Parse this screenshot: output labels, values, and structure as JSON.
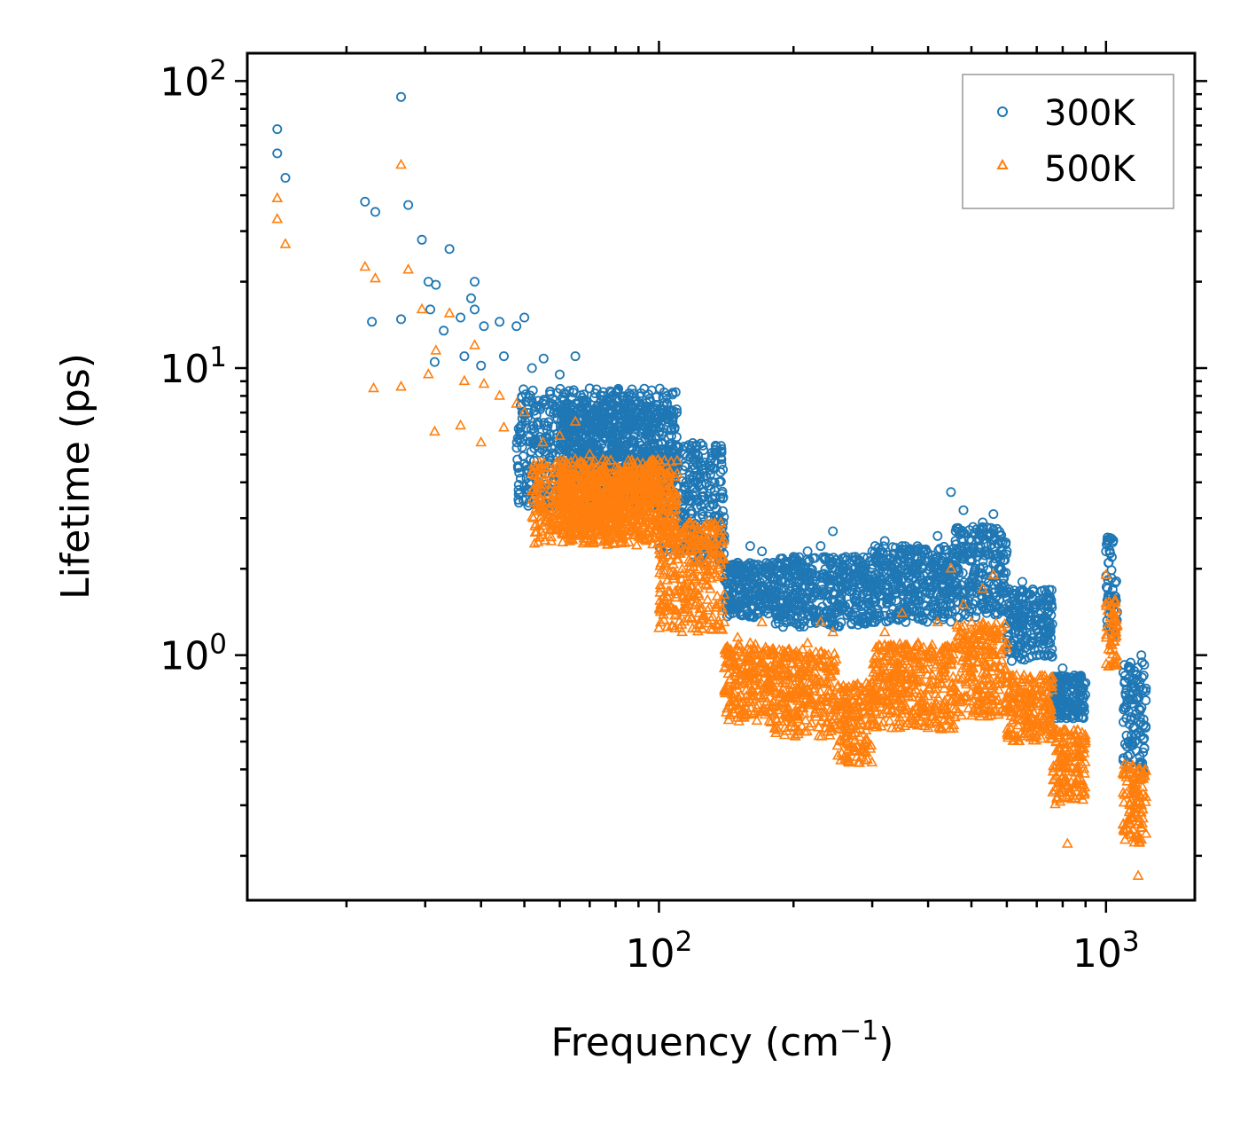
{
  "chart_data": {
    "type": "scatter",
    "title": "",
    "xlabel": "Frequency (cm",
    "xlabel_sup": "−1",
    "xlabel_close": ")",
    "ylabel": "Lifetime (ps)",
    "xscale": "log",
    "yscale": "log",
    "xlim": [
      12,
      1580
    ],
    "ylim": [
      0.14,
      125
    ],
    "x_ticks": [
      {
        "value": 100,
        "base": "10",
        "exp": "2"
      },
      {
        "value": 1000,
        "base": "10",
        "exp": "3"
      }
    ],
    "y_ticks": [
      {
        "value": 1,
        "base": "10",
        "exp": "0"
      },
      {
        "value": 10,
        "base": "10",
        "exp": "1"
      },
      {
        "value": 100,
        "base": "10",
        "exp": "2"
      }
    ],
    "legend_position": "top-right",
    "series": [
      {
        "name": "300K",
        "marker": "circle",
        "color": "#1f77b4",
        "points": [
          [
            14,
            68
          ],
          [
            14,
            56
          ],
          [
            14.6,
            46
          ],
          [
            22,
            38
          ],
          [
            23.2,
            35
          ],
          [
            26.5,
            88
          ],
          [
            27.5,
            37
          ],
          [
            29.5,
            28
          ],
          [
            30.5,
            20
          ],
          [
            31.7,
            19.5
          ],
          [
            34,
            26
          ],
          [
            38.7,
            20
          ],
          [
            30.8,
            16
          ],
          [
            26.5,
            14.8
          ],
          [
            22.8,
            14.5
          ],
          [
            33,
            13.5
          ],
          [
            36,
            15
          ],
          [
            38,
            17.5
          ],
          [
            38.7,
            16
          ],
          [
            40.6,
            14
          ],
          [
            44,
            14.5
          ],
          [
            48,
            14
          ],
          [
            50,
            15
          ],
          [
            36.7,
            11
          ],
          [
            31.5,
            10.5
          ],
          [
            40,
            10.2
          ],
          [
            45,
            11
          ],
          [
            52,
            10
          ],
          [
            55.2,
            10.8
          ],
          [
            60,
            9.5
          ],
          [
            65,
            11
          ],
          [
            70,
            8.5
          ],
          [
            75,
            8
          ],
          [
            80,
            8.2
          ],
          [
            85,
            7.8
          ],
          [
            90,
            7.2
          ],
          [
            95,
            6.8
          ],
          [
            100,
            6
          ],
          [
            105,
            5.2
          ],
          [
            110,
            4.5
          ],
          [
            115,
            4
          ],
          [
            120,
            4.8
          ],
          [
            125,
            3.7
          ],
          [
            130,
            3.3
          ],
          [
            135,
            3
          ],
          [
            140,
            2.6
          ],
          [
            150,
            2.1
          ],
          [
            160,
            2.4
          ],
          [
            170,
            2.3
          ],
          [
            180,
            2.1
          ],
          [
            190,
            2
          ],
          [
            200,
            2.2
          ],
          [
            215,
            2.3
          ],
          [
            230,
            2.4
          ],
          [
            245,
            2.7
          ],
          [
            260,
            2
          ],
          [
            275,
            2.2
          ],
          [
            300,
            2.3
          ],
          [
            320,
            2.5
          ],
          [
            350,
            2.4
          ],
          [
            380,
            2.3
          ],
          [
            420,
            2.6
          ],
          [
            450,
            3.7
          ],
          [
            480,
            3.2
          ],
          [
            500,
            2.5
          ],
          [
            530,
            2.9
          ],
          [
            560,
            3.1
          ],
          [
            600,
            2.3
          ],
          [
            650,
            1.8
          ],
          [
            700,
            1.5
          ],
          [
            750,
            1.2
          ],
          [
            800,
            0.9
          ],
          [
            850,
            0.85
          ],
          [
            900,
            0.8
          ],
          [
            1000,
            2.3
          ],
          [
            1050,
            1.6
          ],
          [
            1100,
            0.8
          ],
          [
            1150,
            0.7
          ],
          [
            1200,
            1.0
          ]
        ],
        "bands": [
          {
            "x0": 48,
            "x1": 110,
            "low": 3.2,
            "high": 8.5
          },
          {
            "x0": 60,
            "x1": 100,
            "low": 3.6,
            "high": 7.5
          },
          {
            "x0": 100,
            "x1": 140,
            "low": 2.1,
            "high": 5.5
          },
          {
            "x0": 140,
            "x1": 180,
            "low": 1.35,
            "high": 2.1
          },
          {
            "x0": 180,
            "x1": 300,
            "low": 1.25,
            "high": 2.2
          },
          {
            "x0": 300,
            "x1": 460,
            "low": 1.3,
            "high": 2.4
          },
          {
            "x0": 460,
            "x1": 600,
            "low": 1.35,
            "high": 2.8
          },
          {
            "x0": 600,
            "x1": 760,
            "low": 0.95,
            "high": 1.7
          },
          {
            "x0": 760,
            "x1": 900,
            "low": 0.6,
            "high": 0.85
          },
          {
            "x0": 1000,
            "x1": 1060,
            "low": 1.15,
            "high": 2.6
          },
          {
            "x0": 1090,
            "x1": 1230,
            "low": 0.38,
            "high": 0.95
          }
        ]
      },
      {
        "name": "500K",
        "marker": "triangle",
        "color": "#ff7f0e",
        "points": [
          [
            14,
            39
          ],
          [
            14,
            33
          ],
          [
            14.6,
            27
          ],
          [
            22,
            22.5
          ],
          [
            23.2,
            20.5
          ],
          [
            26.5,
            51
          ],
          [
            27.5,
            22
          ],
          [
            29.5,
            16
          ],
          [
            30.5,
            9.5
          ],
          [
            31.7,
            11.5
          ],
          [
            34,
            15.5
          ],
          [
            36.7,
            9
          ],
          [
            38.7,
            12
          ],
          [
            40.6,
            8.8
          ],
          [
            44,
            8
          ],
          [
            48,
            7.5
          ],
          [
            23,
            8.5
          ],
          [
            26.5,
            8.6
          ],
          [
            31.5,
            6
          ],
          [
            36,
            6.3
          ],
          [
            40,
            5.5
          ],
          [
            45,
            6.2
          ],
          [
            50,
            7
          ],
          [
            55,
            5.5
          ],
          [
            60,
            5.8
          ],
          [
            65,
            6.5
          ],
          [
            70,
            5
          ],
          [
            75,
            4.8
          ],
          [
            80,
            4.5
          ],
          [
            85,
            4.2
          ],
          [
            90,
            3.8
          ],
          [
            95,
            3.5
          ],
          [
            100,
            3
          ],
          [
            105,
            2.8
          ],
          [
            110,
            2.5
          ],
          [
            115,
            2.3
          ],
          [
            120,
            2.1
          ],
          [
            125,
            2.4
          ],
          [
            130,
            1.9
          ],
          [
            135,
            1.6
          ],
          [
            140,
            1.3
          ],
          [
            150,
            1.15
          ],
          [
            160,
            1.1
          ],
          [
            170,
            1.3
          ],
          [
            180,
            1.05
          ],
          [
            190,
            0.95
          ],
          [
            200,
            1
          ],
          [
            215,
            1.1
          ],
          [
            230,
            1.3
          ],
          [
            245,
            1.2
          ],
          [
            260,
            0.6
          ],
          [
            275,
            0.75
          ],
          [
            300,
            0.8
          ],
          [
            320,
            1.2
          ],
          [
            350,
            1.4
          ],
          [
            380,
            1.1
          ],
          [
            420,
            1.3
          ],
          [
            450,
            2
          ],
          [
            480,
            1.5
          ],
          [
            500,
            1.3
          ],
          [
            530,
            1.7
          ],
          [
            560,
            1.9
          ],
          [
            600,
            1.1
          ],
          [
            650,
            0.8
          ],
          [
            700,
            0.75
          ],
          [
            750,
            0.65
          ],
          [
            800,
            0.5
          ],
          [
            850,
            0.45
          ],
          [
            900,
            0.5
          ],
          [
            1000,
            1.9
          ],
          [
            1050,
            1.3
          ],
          [
            1100,
            0.4
          ],
          [
            1150,
            0.35
          ],
          [
            1200,
            0.3
          ],
          [
            1180,
            0.17
          ],
          [
            820,
            0.22
          ]
        ],
        "bands": [
          {
            "x0": 52,
            "x1": 110,
            "low": 2.4,
            "high": 4.8
          },
          {
            "x0": 60,
            "x1": 100,
            "low": 2.6,
            "high": 4.4
          },
          {
            "x0": 100,
            "x1": 140,
            "low": 1.2,
            "high": 2.9
          },
          {
            "x0": 140,
            "x1": 180,
            "low": 0.58,
            "high": 1.1
          },
          {
            "x0": 180,
            "x1": 250,
            "low": 0.52,
            "high": 1.05
          },
          {
            "x0": 250,
            "x1": 300,
            "low": 0.42,
            "high": 0.8
          },
          {
            "x0": 300,
            "x1": 460,
            "low": 0.55,
            "high": 1.1
          },
          {
            "x0": 460,
            "x1": 600,
            "low": 0.6,
            "high": 1.3
          },
          {
            "x0": 600,
            "x1": 760,
            "low": 0.5,
            "high": 0.85
          },
          {
            "x0": 760,
            "x1": 900,
            "low": 0.3,
            "high": 0.55
          },
          {
            "x0": 1000,
            "x1": 1060,
            "low": 0.9,
            "high": 1.6
          },
          {
            "x0": 1090,
            "x1": 1230,
            "low": 0.22,
            "high": 0.42
          }
        ]
      }
    ]
  }
}
